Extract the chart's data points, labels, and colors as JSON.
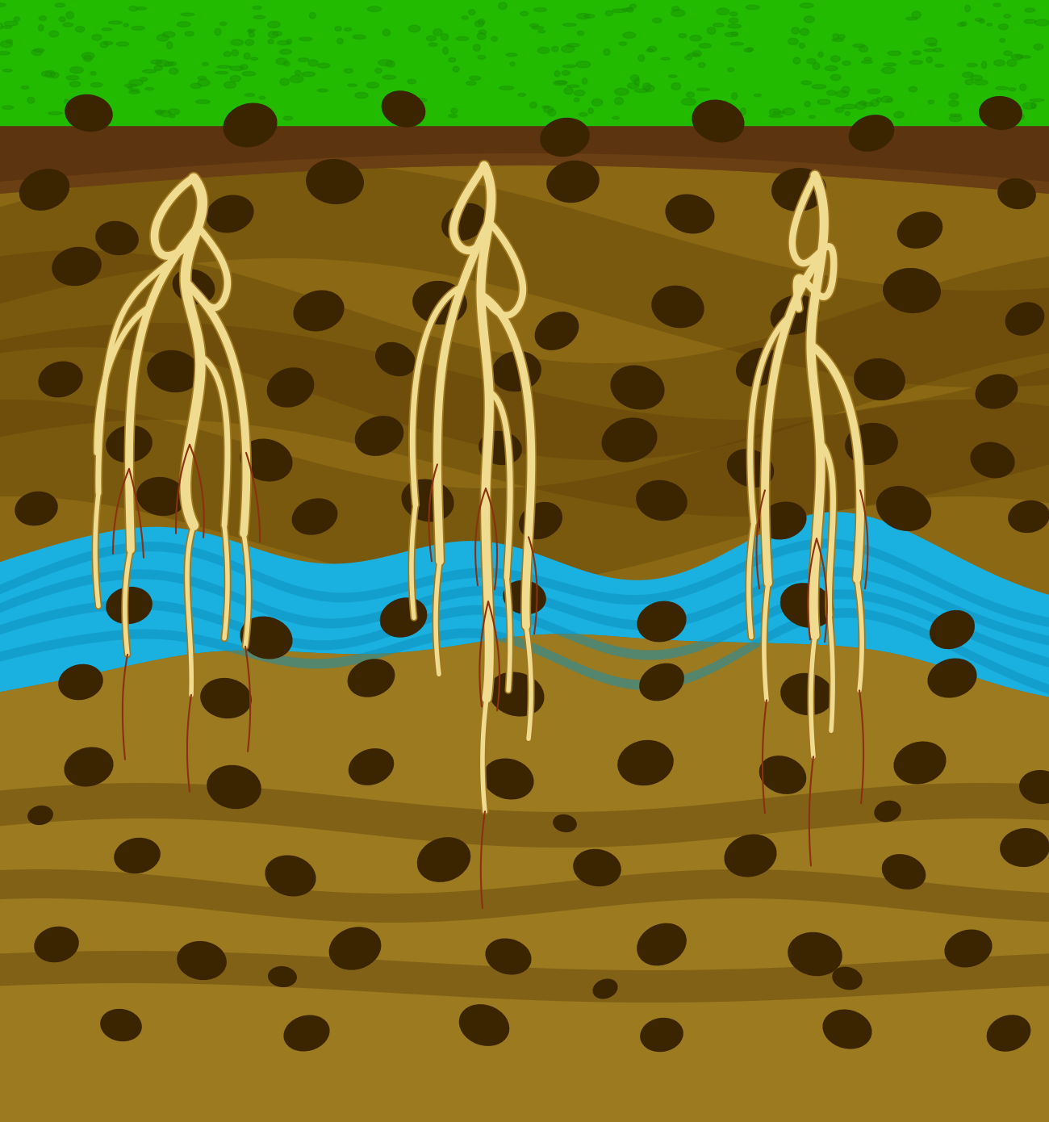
{
  "figsize": [
    13.0,
    13.9
  ],
  "dpi": 100,
  "bg_color": "#8B6914",
  "grass_color": "#22bb00",
  "grass_dark": "#1a9400",
  "topsoil_color": "#5c3510",
  "topsoil_color2": "#7a4a18",
  "soil_upper_color": "#8B6914",
  "soil_upper_dark": "#6b4e08",
  "soil_lower_color": "#9b7a20",
  "soil_lower_dark": "#7a5e10",
  "water_color": "#1ab0e0",
  "water_dark": "#0e90bb",
  "water_darker": "#0a7090",
  "stone_color": "#3a2500",
  "root_fill": "#f0dc90",
  "root_outline": "#a07820",
  "root_hair_color": "#8b3010",
  "shadow_color": "#5a3c05"
}
